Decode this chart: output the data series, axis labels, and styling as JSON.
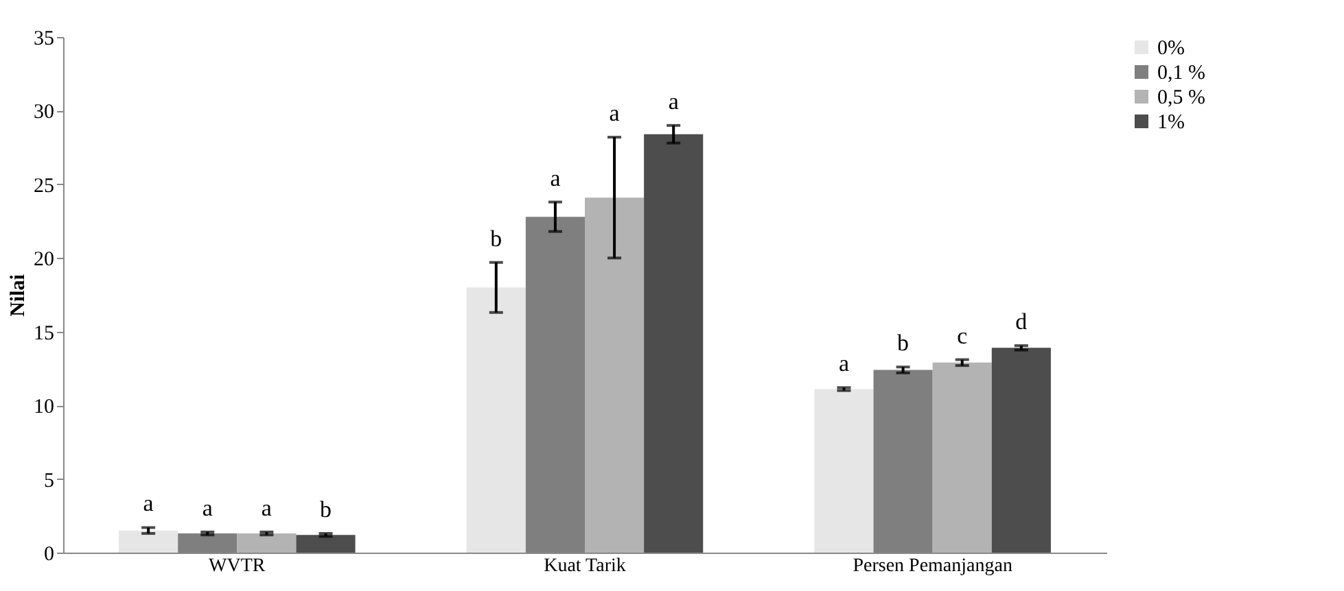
{
  "chart_data": {
    "type": "bar",
    "ylabel": "Nilai",
    "categories": [
      "WVTR",
      "Kuat Tarik",
      "Persen Pemanjangan"
    ],
    "series": [
      {
        "name": "0%",
        "color": "#e6e6e6",
        "values": [
          1.5,
          18.0,
          11.1
        ],
        "errors": [
          0.2,
          1.7,
          0.1
        ]
      },
      {
        "name": "0,1 %",
        "color": "#7f7f7f",
        "values": [
          1.3,
          22.8,
          12.4
        ],
        "errors": [
          0.1,
          1.0,
          0.2
        ]
      },
      {
        "name": " 0,5 %",
        "color": "#b3b3b3",
        "values": [
          1.3,
          24.1,
          12.9
        ],
        "errors": [
          0.1,
          4.1,
          0.2
        ]
      },
      {
        "name": "1%",
        "color": "#4d4d4d",
        "values": [
          1.2,
          28.4,
          13.9
        ],
        "errors": [
          0.1,
          0.6,
          0.15
        ]
      }
    ],
    "ylim": [
      0,
      35
    ],
    "yticks": [
      0,
      5,
      10,
      15,
      20,
      25,
      30,
      35
    ],
    "grid": false,
    "legend": "right",
    "annotations": [
      "a",
      "a",
      "a",
      "b",
      "b",
      "a",
      "a",
      "a",
      "a",
      "b",
      "c",
      "d"
    ]
  }
}
